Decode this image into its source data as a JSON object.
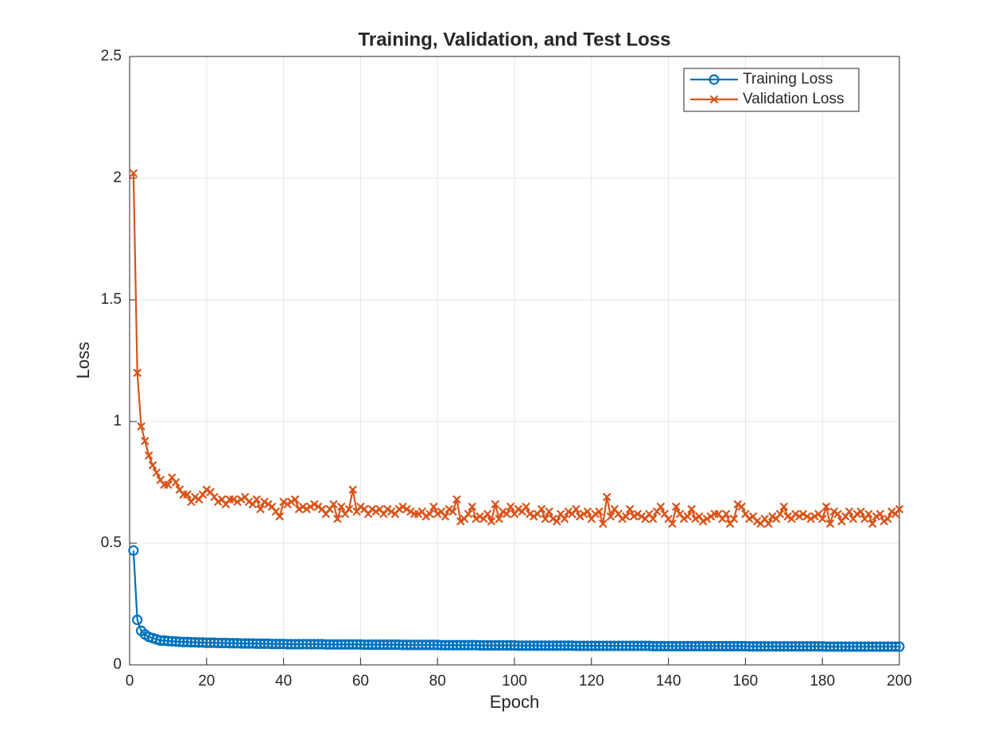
{
  "chart_data": {
    "type": "line",
    "title": "Training, Validation, and Test Loss",
    "x_label": "Epoch",
    "y_label": "Loss",
    "xlim": [
      0,
      200
    ],
    "xticks": [
      0,
      20,
      40,
      60,
      80,
      100,
      120,
      140,
      160,
      180,
      200
    ],
    "ylim": [
      0,
      2.5
    ],
    "yticks": [
      0,
      0.5,
      1,
      1.5,
      2,
      2.5
    ],
    "grid": true,
    "legend": "top-right",
    "x": [
      1,
      2,
      3,
      4,
      5,
      6,
      7,
      8,
      9,
      10,
      11,
      12,
      13,
      14,
      15,
      16,
      17,
      18,
      19,
      20,
      21,
      22,
      23,
      24,
      25,
      26,
      27,
      28,
      29,
      30,
      31,
      32,
      33,
      34,
      35,
      36,
      37,
      38,
      39,
      40,
      41,
      42,
      43,
      44,
      45,
      46,
      47,
      48,
      49,
      50,
      51,
      52,
      53,
      54,
      55,
      56,
      57,
      58,
      59,
      60,
      61,
      62,
      63,
      64,
      65,
      66,
      67,
      68,
      69,
      70,
      71,
      72,
      73,
      74,
      75,
      76,
      77,
      78,
      79,
      80,
      81,
      82,
      83,
      84,
      85,
      86,
      87,
      88,
      89,
      90,
      91,
      92,
      93,
      94,
      95,
      96,
      97,
      98,
      99,
      100,
      101,
      102,
      103,
      104,
      105,
      106,
      107,
      108,
      109,
      110,
      111,
      112,
      113,
      114,
      115,
      116,
      117,
      118,
      119,
      120,
      121,
      122,
      123,
      124,
      125,
      126,
      127,
      128,
      129,
      130,
      131,
      132,
      133,
      134,
      135,
      136,
      137,
      138,
      139,
      140,
      141,
      142,
      143,
      144,
      145,
      146,
      147,
      148,
      149,
      150,
      151,
      152,
      153,
      154,
      155,
      156,
      157,
      158,
      159,
      160,
      161,
      162,
      163,
      164,
      165,
      166,
      167,
      168,
      169,
      170,
      171,
      172,
      173,
      174,
      175,
      176,
      177,
      178,
      179,
      180,
      181,
      182,
      183,
      184,
      185,
      186,
      187,
      188,
      189,
      190,
      191,
      192,
      193,
      194,
      195,
      196,
      197,
      198,
      199,
      200
    ],
    "series": [
      {
        "name": "Training Loss",
        "color": "#0072BD",
        "marker": "circle",
        "values": [
          0.47,
          0.185,
          0.14,
          0.125,
          0.115,
          0.11,
          0.105,
          0.1,
          0.1,
          0.098,
          0.097,
          0.096,
          0.095,
          0.094,
          0.094,
          0.093,
          0.093,
          0.092,
          0.092,
          0.091,
          0.091,
          0.091,
          0.09,
          0.09,
          0.09,
          0.089,
          0.089,
          0.089,
          0.088,
          0.088,
          0.088,
          0.088,
          0.087,
          0.087,
          0.087,
          0.087,
          0.086,
          0.086,
          0.086,
          0.086,
          0.085,
          0.085,
          0.085,
          0.085,
          0.085,
          0.085,
          0.085,
          0.085,
          0.085,
          0.085,
          0.084,
          0.084,
          0.084,
          0.084,
          0.084,
          0.084,
          0.084,
          0.084,
          0.084,
          0.084,
          0.083,
          0.083,
          0.083,
          0.083,
          0.083,
          0.083,
          0.083,
          0.083,
          0.083,
          0.083,
          0.082,
          0.082,
          0.082,
          0.082,
          0.082,
          0.082,
          0.082,
          0.082,
          0.082,
          0.082,
          0.081,
          0.081,
          0.081,
          0.081,
          0.081,
          0.081,
          0.081,
          0.081,
          0.081,
          0.081,
          0.08,
          0.08,
          0.08,
          0.08,
          0.08,
          0.08,
          0.08,
          0.08,
          0.08,
          0.08,
          0.079,
          0.079,
          0.079,
          0.079,
          0.079,
          0.079,
          0.079,
          0.079,
          0.079,
          0.079,
          0.079,
          0.079,
          0.079,
          0.079,
          0.079,
          0.078,
          0.078,
          0.078,
          0.078,
          0.078,
          0.078,
          0.078,
          0.078,
          0.078,
          0.078,
          0.078,
          0.078,
          0.078,
          0.078,
          0.078,
          0.078,
          0.078,
          0.078,
          0.078,
          0.078,
          0.077,
          0.077,
          0.077,
          0.077,
          0.077,
          0.077,
          0.077,
          0.077,
          0.077,
          0.077,
          0.077,
          0.077,
          0.077,
          0.077,
          0.077,
          0.077,
          0.077,
          0.077,
          0.077,
          0.077,
          0.077,
          0.077,
          0.077,
          0.077,
          0.077,
          0.076,
          0.076,
          0.076,
          0.076,
          0.076,
          0.076,
          0.076,
          0.076,
          0.076,
          0.076,
          0.076,
          0.076,
          0.076,
          0.076,
          0.076,
          0.076,
          0.076,
          0.076,
          0.076,
          0.076,
          0.075,
          0.075,
          0.075,
          0.075,
          0.075,
          0.075,
          0.075,
          0.075,
          0.075,
          0.075,
          0.075,
          0.075,
          0.075,
          0.075,
          0.075,
          0.075,
          0.075,
          0.075,
          0.075,
          0.075
        ]
      },
      {
        "name": "Validation Loss",
        "color": "#D95319",
        "marker": "x",
        "values": [
          2.02,
          1.2,
          0.98,
          0.92,
          0.86,
          0.82,
          0.79,
          0.76,
          0.74,
          0.74,
          0.77,
          0.75,
          0.72,
          0.7,
          0.7,
          0.67,
          0.69,
          0.68,
          0.7,
          0.72,
          0.71,
          0.69,
          0.67,
          0.68,
          0.66,
          0.68,
          0.68,
          0.67,
          0.68,
          0.69,
          0.67,
          0.66,
          0.68,
          0.64,
          0.67,
          0.66,
          0.65,
          0.63,
          0.61,
          0.67,
          0.66,
          0.67,
          0.68,
          0.64,
          0.65,
          0.64,
          0.65,
          0.66,
          0.65,
          0.64,
          0.62,
          0.64,
          0.66,
          0.6,
          0.65,
          0.62,
          0.64,
          0.72,
          0.63,
          0.65,
          0.64,
          0.62,
          0.64,
          0.63,
          0.64,
          0.62,
          0.64,
          0.63,
          0.62,
          0.64,
          0.65,
          0.64,
          0.63,
          0.62,
          0.62,
          0.63,
          0.61,
          0.62,
          0.65,
          0.62,
          0.63,
          0.61,
          0.64,
          0.63,
          0.68,
          0.59,
          0.6,
          0.62,
          0.65,
          0.6,
          0.61,
          0.6,
          0.62,
          0.59,
          0.66,
          0.6,
          0.63,
          0.62,
          0.65,
          0.62,
          0.64,
          0.63,
          0.65,
          0.62,
          0.61,
          0.62,
          0.64,
          0.6,
          0.63,
          0.6,
          0.59,
          0.62,
          0.6,
          0.63,
          0.62,
          0.64,
          0.61,
          0.62,
          0.63,
          0.6,
          0.62,
          0.63,
          0.58,
          0.69,
          0.61,
          0.64,
          0.62,
          0.6,
          0.61,
          0.64,
          0.61,
          0.62,
          0.61,
          0.6,
          0.62,
          0.6,
          0.63,
          0.65,
          0.62,
          0.6,
          0.58,
          0.65,
          0.62,
          0.6,
          0.61,
          0.64,
          0.6,
          0.61,
          0.59,
          0.6,
          0.61,
          0.62,
          0.62,
          0.6,
          0.62,
          0.58,
          0.6,
          0.66,
          0.65,
          0.62,
          0.6,
          0.61,
          0.59,
          0.58,
          0.6,
          0.58,
          0.61,
          0.6,
          0.62,
          0.65,
          0.61,
          0.6,
          0.62,
          0.61,
          0.62,
          0.61,
          0.6,
          0.61,
          0.62,
          0.6,
          0.65,
          0.58,
          0.63,
          0.62,
          0.59,
          0.61,
          0.63,
          0.6,
          0.62,
          0.63,
          0.6,
          0.62,
          0.58,
          0.61,
          0.62,
          0.59,
          0.6,
          0.63,
          0.62,
          0.64
        ]
      }
    ]
  }
}
